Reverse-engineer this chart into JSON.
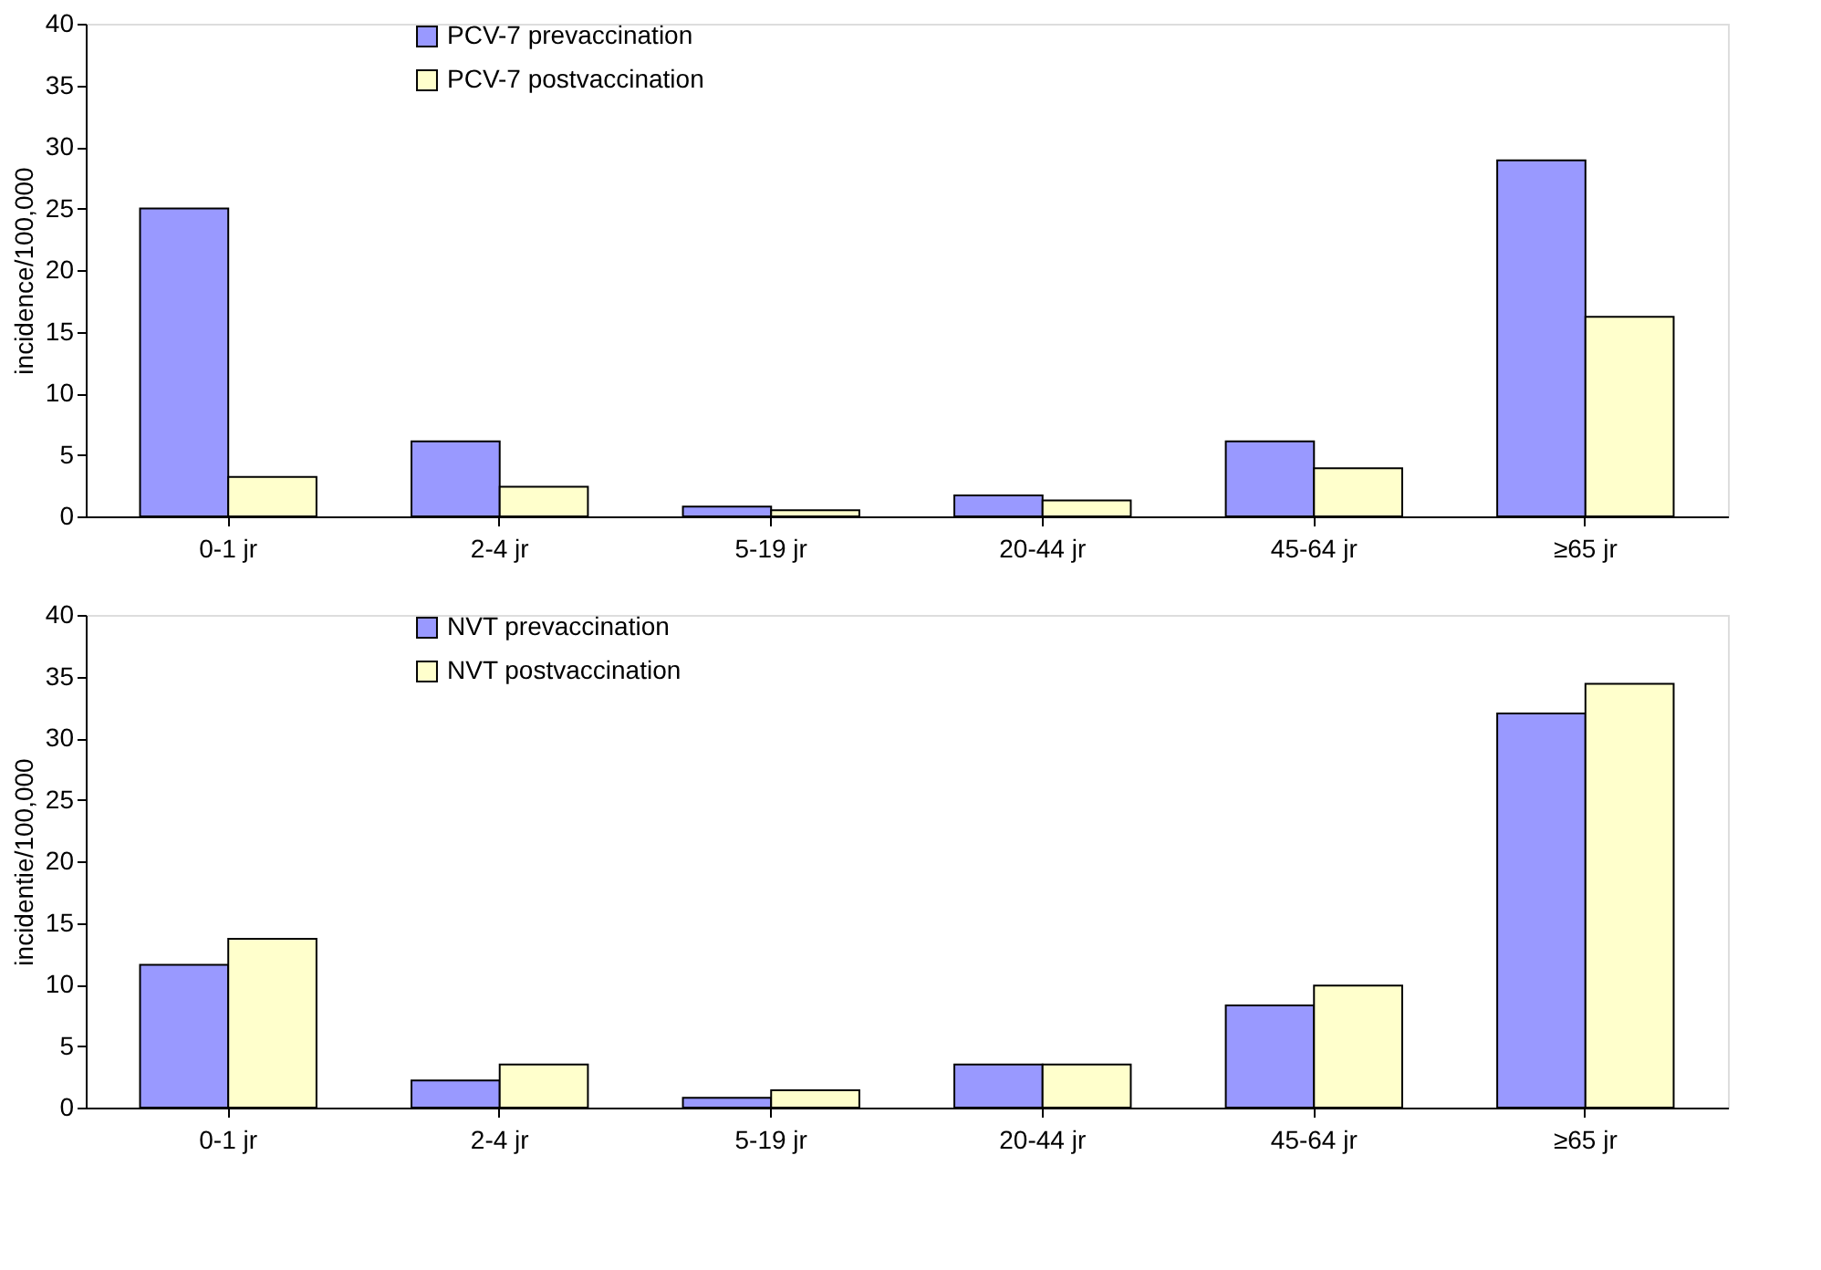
{
  "chart_data": [
    {
      "type": "bar",
      "ylabel": "incidence/100,000",
      "categories": [
        "0-1 jr",
        "2-4 jr",
        "5-19 jr",
        "20-44 jr",
        "45-64 jr",
        "≥65 jr"
      ],
      "ylim": [
        0,
        40
      ],
      "yticks": [
        0,
        5,
        10,
        15,
        20,
        25,
        30,
        35,
        40
      ],
      "legend": "top",
      "series": [
        {
          "name": "PCV-7 prevaccination",
          "color": "#9999ff",
          "values": [
            25.0,
            6.1,
            0.8,
            1.7,
            6.1,
            28.9
          ]
        },
        {
          "name": "PCV-7 postvaccination",
          "color": "#ffffcc",
          "values": [
            3.2,
            2.4,
            0.5,
            1.3,
            3.9,
            16.2
          ]
        }
      ]
    },
    {
      "type": "bar",
      "ylabel": "incidentie/100,000",
      "categories": [
        "0-1 jr",
        "2-4 jr",
        "5-19 jr",
        "20-44 jr",
        "45-64 jr",
        "≥65 jr"
      ],
      "ylim": [
        0,
        40
      ],
      "yticks": [
        0,
        5,
        10,
        15,
        20,
        25,
        30,
        35,
        40
      ],
      "legend": "top",
      "series": [
        {
          "name": "NVT prevaccination",
          "color": "#9999ff",
          "values": [
            11.6,
            2.2,
            0.8,
            3.5,
            8.3,
            32.0
          ]
        },
        {
          "name": "NVT postvaccination",
          "color": "#ffffcc",
          "values": [
            13.7,
            3.5,
            1.4,
            3.5,
            9.9,
            34.4
          ]
        }
      ]
    }
  ]
}
